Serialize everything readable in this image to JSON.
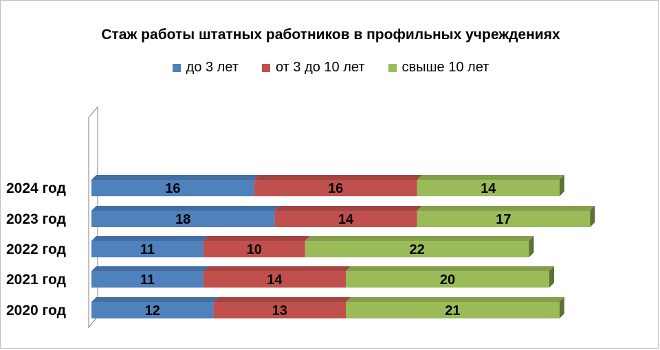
{
  "chart_data": {
    "type": "bar",
    "orientation": "horizontal",
    "stacked": true,
    "title": "Стаж работы  штатных работников  в профильных учреждениях",
    "categories": [
      "2024 год",
      "2023 год",
      "2022 год",
      "2021 год",
      "2020 год"
    ],
    "series": [
      {
        "name": "до  3 лет",
        "color": "#4f81bd",
        "values": [
          16,
          18,
          11,
          11,
          12
        ]
      },
      {
        "name": "от 3 до 10 лет",
        "color": "#c0504d",
        "values": [
          16,
          14,
          10,
          14,
          13
        ]
      },
      {
        "name": "свыше 10 лет",
        "color": "#9bbb59",
        "values": [
          14,
          17,
          22,
          20,
          21
        ]
      }
    ],
    "legend_position": "top",
    "grid": false,
    "data_labels": true
  }
}
